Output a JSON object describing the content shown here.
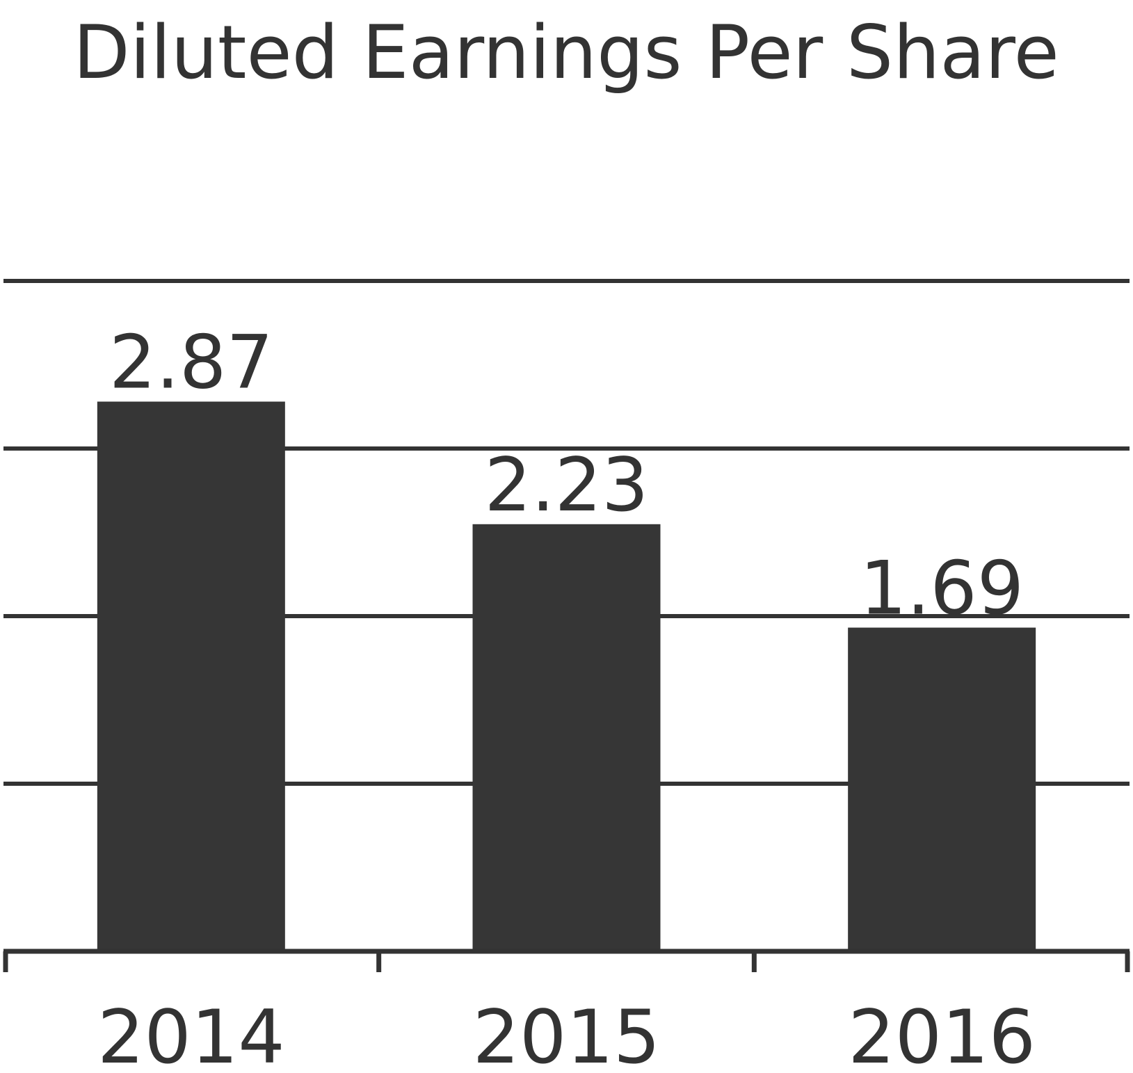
{
  "chart_data": {
    "type": "bar",
    "title": "Diluted Earnings Per Share",
    "xlabel": "",
    "ylabel": "",
    "categories": [
      "2014",
      "2015",
      "2016"
    ],
    "values": [
      2.87,
      2.23,
      1.69
    ],
    "value_labels": [
      "2.87",
      "2.23",
      "1.69"
    ],
    "ylim": [
      0,
      3.5
    ],
    "gridlines": [
      0.875,
      1.75,
      2.625,
      3.5
    ],
    "grid": true,
    "legend": "none",
    "colors": {
      "bar": "#363636",
      "grid": "#333333",
      "text": "#333333"
    }
  }
}
